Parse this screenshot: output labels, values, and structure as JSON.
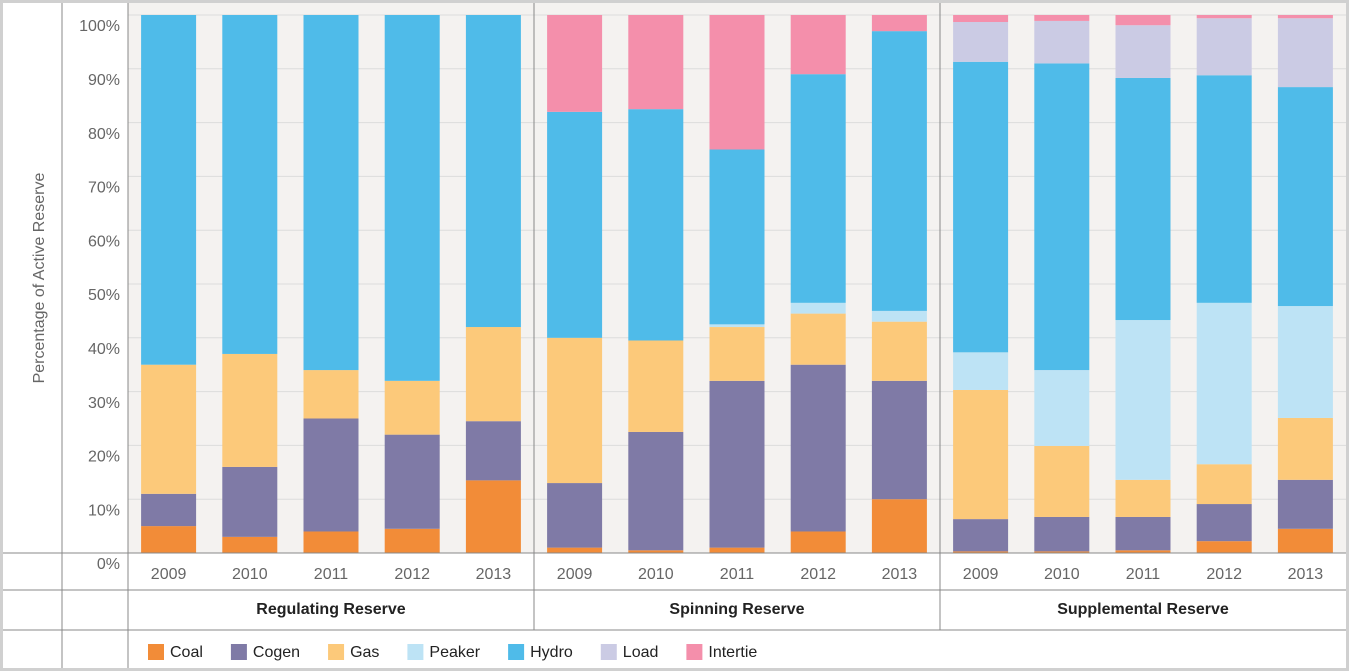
{
  "chart_data": {
    "type": "stacked_bar",
    "y_label": "Percentage of Active Reserve",
    "ylim": [
      0,
      100
    ],
    "yticks": [
      {
        "value": 0,
        "label": "0%"
      },
      {
        "value": 10,
        "label": "10%"
      },
      {
        "value": 20,
        "label": "20%"
      },
      {
        "value": 30,
        "label": "30%"
      },
      {
        "value": 40,
        "label": "40%"
      },
      {
        "value": 50,
        "label": "50%"
      },
      {
        "value": 60,
        "label": "60%"
      },
      {
        "value": 70,
        "label": "70%"
      },
      {
        "value": 80,
        "label": "80%"
      },
      {
        "value": 90,
        "label": "90%"
      },
      {
        "value": 100,
        "label": "100%"
      }
    ],
    "grid": true,
    "groups": [
      {
        "name": "Regulating Reserve",
        "categories": [
          "2009",
          "2010",
          "2011",
          "2012",
          "2013"
        ]
      },
      {
        "name": "Spinning Reserve",
        "categories": [
          "2009",
          "2010",
          "2011",
          "2012",
          "2013"
        ]
      },
      {
        "name": "Supplemental Reserve",
        "categories": [
          "2009",
          "2010",
          "2011",
          "2012",
          "2013"
        ]
      }
    ],
    "series": [
      {
        "name": "Coal",
        "color": "#f28c38",
        "values": [
          5,
          3,
          4,
          4.5,
          13.5,
          1,
          0.5,
          1,
          4,
          10,
          0.3,
          0.3,
          0.5,
          2.2,
          4.5
        ]
      },
      {
        "name": "Cogen",
        "color": "#7f7aa6",
        "values": [
          6,
          13,
          21,
          17.5,
          11,
          12,
          22,
          31,
          31,
          22,
          6,
          6.4,
          6.2,
          6.9,
          9.1
        ]
      },
      {
        "name": "Gas",
        "color": "#fcc97a",
        "values": [
          24,
          21,
          9,
          10,
          17.5,
          27,
          17,
          10,
          9.5,
          11,
          24,
          13.2,
          6.9,
          7.4,
          11.5
        ]
      },
      {
        "name": "Peaker",
        "color": "#bde3f5",
        "values": [
          0,
          0,
          0,
          0,
          0,
          0,
          0,
          0.5,
          2,
          2,
          7,
          14.1,
          29.7,
          30,
          20.8
        ]
      },
      {
        "name": "Hydro",
        "color": "#4fbbe9",
        "values": [
          65,
          63,
          66,
          68,
          58,
          42,
          43,
          32.5,
          42.5,
          52,
          54,
          57,
          45,
          42.3,
          40.7
        ]
      },
      {
        "name": "Load",
        "color": "#cbcbe4",
        "values": [
          0,
          0,
          0,
          0,
          0,
          0,
          0,
          0,
          0,
          0,
          7.4,
          7.9,
          9.8,
          10.6,
          12.8
        ]
      },
      {
        "name": "Intertie",
        "color": "#f48fab",
        "values": [
          0,
          0,
          0,
          0,
          0,
          18,
          17.5,
          25,
          11,
          3,
          1.3,
          1.1,
          1.9,
          0.6,
          0.6
        ]
      }
    ]
  }
}
